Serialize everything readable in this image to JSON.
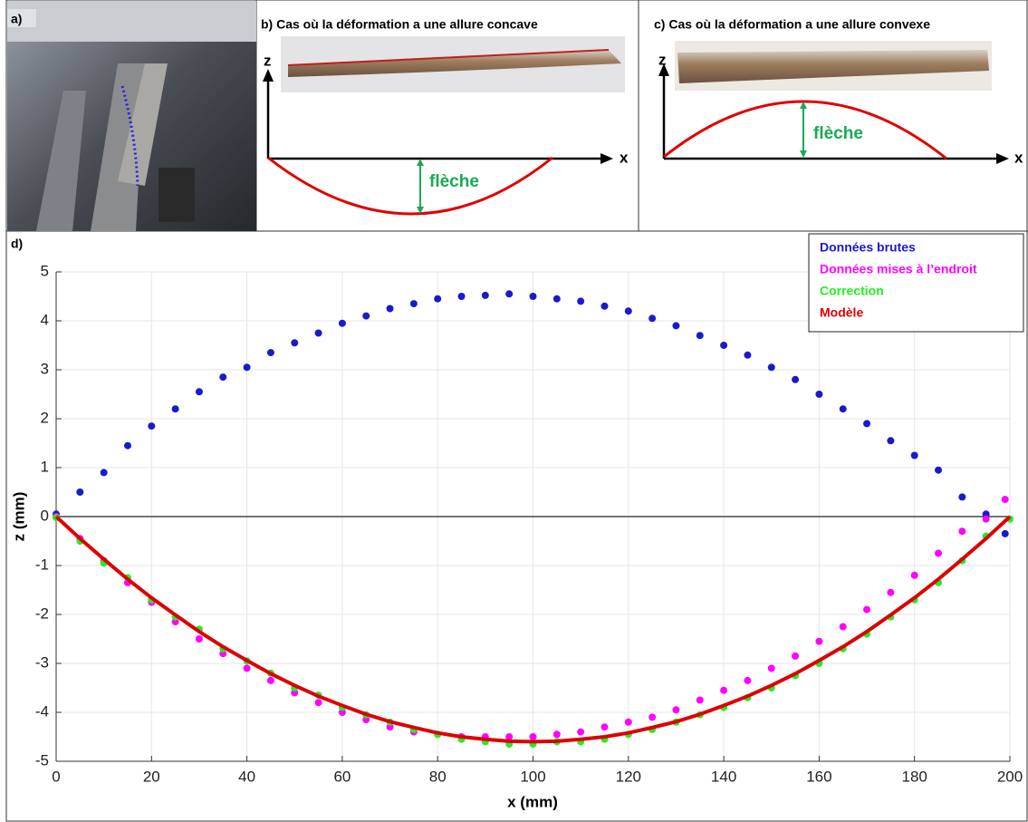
{
  "panels": [
    {
      "label": "a)"
    },
    {
      "title": "b) Cas où la déformation a une allure concave",
      "z_label": "z",
      "x_label": "x",
      "arrow_label": "flèche"
    },
    {
      "title": "c) Cas où la déformation a une allure convexe",
      "z_label": "z",
      "x_label": "x",
      "arrow_label": "flèche"
    }
  ],
  "chart_data": {
    "type": "scatter",
    "label": "d)",
    "xlabel": "x (mm)",
    "ylabel": "z (mm)",
    "xlim": [
      0,
      200
    ],
    "xticks": [
      0,
      20,
      40,
      60,
      80,
      100,
      120,
      140,
      160,
      180,
      200
    ],
    "ylim": [
      -5,
      5
    ],
    "yticks": [
      -5,
      -4,
      -3,
      -2,
      -1,
      0,
      1,
      2,
      3,
      4,
      5
    ],
    "grid": true,
    "zero_line": true,
    "legend": "top-right",
    "series": [
      {
        "name": "Données brutes",
        "color": "#1a1acc",
        "mode": "markers",
        "x": [
          0,
          5,
          10,
          15,
          20,
          25,
          30,
          35,
          40,
          45,
          50,
          55,
          60,
          65,
          70,
          75,
          80,
          85,
          90,
          95,
          100,
          105,
          110,
          115,
          120,
          125,
          130,
          135,
          140,
          145,
          150,
          155,
          160,
          165,
          170,
          175,
          180,
          185,
          190,
          195,
          199
        ],
        "values": [
          0.05,
          0.5,
          0.9,
          1.45,
          1.85,
          2.2,
          2.55,
          2.85,
          3.05,
          3.35,
          3.55,
          3.75,
          3.95,
          4.1,
          4.25,
          4.35,
          4.45,
          4.5,
          4.52,
          4.55,
          4.5,
          4.45,
          4.4,
          4.3,
          4.2,
          4.05,
          3.9,
          3.7,
          3.5,
          3.3,
          3.05,
          2.8,
          2.5,
          2.2,
          1.9,
          1.55,
          1.25,
          0.95,
          0.4,
          0.05,
          -0.35
        ]
      },
      {
        "name": "Données mises à l’endroit",
        "color": "#ff00ff",
        "mode": "markers",
        "x": [
          0,
          5,
          10,
          15,
          20,
          25,
          30,
          35,
          40,
          45,
          50,
          55,
          60,
          65,
          70,
          75,
          80,
          85,
          90,
          95,
          100,
          105,
          110,
          115,
          120,
          125,
          130,
          135,
          140,
          145,
          150,
          155,
          160,
          165,
          170,
          175,
          180,
          185,
          190,
          195,
          199
        ],
        "values": [
          0,
          -0.45,
          -0.9,
          -1.35,
          -1.75,
          -2.15,
          -2.5,
          -2.8,
          -3.1,
          -3.35,
          -3.6,
          -3.8,
          -4.0,
          -4.15,
          -4.3,
          -4.4,
          -4.45,
          -4.5,
          -4.5,
          -4.5,
          -4.5,
          -4.45,
          -4.4,
          -4.3,
          -4.2,
          -4.1,
          -3.95,
          -3.75,
          -3.55,
          -3.35,
          -3.1,
          -2.85,
          -2.55,
          -2.25,
          -1.9,
          -1.55,
          -1.2,
          -0.75,
          -0.3,
          -0.05,
          0.35
        ]
      },
      {
        "name": "Correction",
        "color": "#22ee22",
        "mode": "markers",
        "x": [
          0,
          5,
          10,
          15,
          20,
          25,
          30,
          35,
          40,
          45,
          50,
          55,
          60,
          65,
          70,
          75,
          80,
          85,
          90,
          95,
          100,
          105,
          110,
          115,
          120,
          125,
          130,
          135,
          140,
          145,
          150,
          155,
          160,
          165,
          170,
          175,
          180,
          185,
          190,
          195,
          200
        ],
        "values": [
          -0.02,
          -0.5,
          -0.95,
          -1.25,
          -1.7,
          -2.05,
          -2.3,
          -2.7,
          -2.95,
          -3.2,
          -3.5,
          -3.65,
          -3.9,
          -4.05,
          -4.2,
          -4.35,
          -4.45,
          -4.55,
          -4.6,
          -4.65,
          -4.65,
          -4.6,
          -4.6,
          -4.55,
          -4.45,
          -4.35,
          -4.2,
          -4.05,
          -3.9,
          -3.7,
          -3.5,
          -3.25,
          -3.0,
          -2.7,
          -2.4,
          -2.05,
          -1.7,
          -1.35,
          -0.9,
          -0.4,
          -0.05
        ]
      },
      {
        "name": "Modèle",
        "color": "#dd0000",
        "mode": "line",
        "x": [
          0,
          5,
          10,
          15,
          20,
          25,
          30,
          35,
          40,
          45,
          50,
          55,
          60,
          65,
          70,
          75,
          80,
          85,
          90,
          95,
          100,
          105,
          110,
          115,
          120,
          125,
          130,
          135,
          140,
          145,
          150,
          155,
          160,
          165,
          170,
          175,
          180,
          185,
          190,
          195,
          200
        ],
        "values": [
          0,
          -0.45,
          -0.87,
          -1.28,
          -1.66,
          -2.01,
          -2.35,
          -2.66,
          -2.94,
          -3.21,
          -3.45,
          -3.67,
          -3.86,
          -4.04,
          -4.19,
          -4.31,
          -4.42,
          -4.5,
          -4.55,
          -4.59,
          -4.6,
          -4.59,
          -4.55,
          -4.5,
          -4.42,
          -4.31,
          -4.19,
          -4.04,
          -3.86,
          -3.67,
          -3.45,
          -3.21,
          -2.94,
          -2.66,
          -2.35,
          -2.01,
          -1.66,
          -1.28,
          -0.87,
          -0.45,
          0
        ]
      }
    ]
  }
}
